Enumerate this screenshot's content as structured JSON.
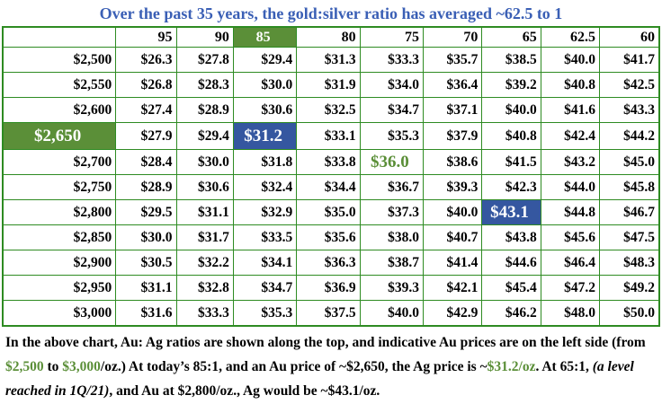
{
  "title": "Over the past 35 years, the gold:silver ratio has averaged ~62.5 to 1",
  "table": {
    "header": [
      "95",
      "90",
      "85",
      "80",
      "75",
      "70",
      "65",
      "62.5",
      "60"
    ],
    "rows": [
      {
        "price": "$2,500",
        "values": [
          "$26.3",
          "$27.8",
          "$29.4",
          "$31.3",
          "$33.3",
          "$35.7",
          "$38.5",
          "$40.0",
          "$41.7"
        ]
      },
      {
        "price": "$2,550",
        "values": [
          "$26.8",
          "$28.3",
          "$30.0",
          "$31.9",
          "$34.0",
          "$36.4",
          "$39.2",
          "$40.8",
          "$42.5"
        ]
      },
      {
        "price": "$2,600",
        "values": [
          "$27.4",
          "$28.9",
          "$30.6",
          "$32.5",
          "$34.7",
          "$37.1",
          "$40.0",
          "$41.6",
          "$43.3"
        ]
      },
      {
        "price": "$2,650",
        "values": [
          "$27.9",
          "$29.4",
          "$31.2",
          "$33.1",
          "$35.3",
          "$37.9",
          "$40.8",
          "$42.4",
          "$44.2"
        ]
      },
      {
        "price": "$2,700",
        "values": [
          "$28.4",
          "$30.0",
          "$31.8",
          "$33.8",
          "$36.0",
          "$38.6",
          "$41.5",
          "$43.2",
          "$45.0"
        ]
      },
      {
        "price": "$2,750",
        "values": [
          "$28.9",
          "$30.6",
          "$32.4",
          "$34.4",
          "$36.7",
          "$39.3",
          "$42.3",
          "$44.0",
          "$45.8"
        ]
      },
      {
        "price": "$2,800",
        "values": [
          "$29.5",
          "$31.1",
          "$32.9",
          "$35.0",
          "$37.3",
          "$40.0",
          "$43.1",
          "$44.8",
          "$46.7"
        ]
      },
      {
        "price": "$2,850",
        "values": [
          "$30.0",
          "$31.7",
          "$33.5",
          "$35.6",
          "$38.0",
          "$40.7",
          "$43.8",
          "$45.6",
          "$47.5"
        ]
      },
      {
        "price": "$2,900",
        "values": [
          "$30.5",
          "$32.2",
          "$34.1",
          "$36.3",
          "$38.7",
          "$41.4",
          "$44.6",
          "$46.4",
          "$48.3"
        ]
      },
      {
        "price": "$2,950",
        "values": [
          "$31.1",
          "$32.8",
          "$34.7",
          "$36.9",
          "$39.3",
          "$42.1",
          "$45.4",
          "$47.2",
          "$49.2"
        ]
      },
      {
        "price": "$3,000",
        "values": [
          "$31.6",
          "$33.3",
          "$35.3",
          "$37.5",
          "$40.0",
          "$42.9",
          "$46.2",
          "$48.0",
          "$50.0"
        ]
      }
    ]
  },
  "footnote": [
    "In the above chart, Au: Ag ratios are shown along the top, and indicative Au prices are on the left side (from ",
    "$2,500",
    " to ",
    "$3,000",
    "/oz.) At today’s 85:1, and an Au price of ~$2,650, the Ag price is ~",
    "$31.2/oz",
    ". At 65:1, ",
    "(a level reached in 1Q/21)",
    ", and Au at $2,800/oz., Ag would be ~$43.1/oz."
  ]
}
